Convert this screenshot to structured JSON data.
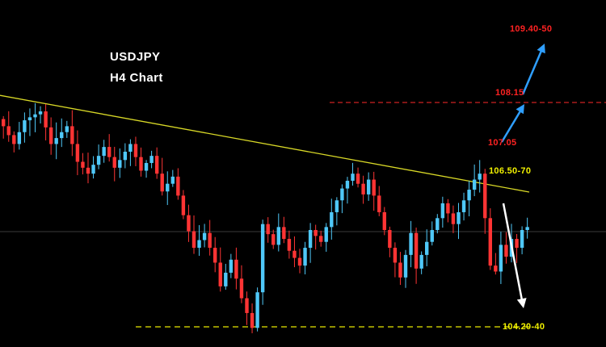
{
  "title": {
    "line1": "USDJPY",
    "line2": "H4 Chart"
  },
  "chart_data": {
    "type": "candlestick",
    "symbol": "USDJPY",
    "timeframe": "H4",
    "price_axis_visible": false,
    "approx_price_range": [
      104.2,
      108.4
    ],
    "closes": [
      107.75,
      107.6,
      107.45,
      107.65,
      107.85,
      107.9,
      107.95,
      108.0,
      107.73,
      107.45,
      107.55,
      107.65,
      107.75,
      107.45,
      107.15,
      107.05,
      106.95,
      107.1,
      107.25,
      107.4,
      107.23,
      107.05,
      107.18,
      107.32,
      107.45,
      107.23,
      107.0,
      107.13,
      107.25,
      106.95,
      106.65,
      106.78,
      106.9,
      106.58,
      106.25,
      105.98,
      105.7,
      105.83,
      105.95,
      105.7,
      105.45,
      105.05,
      105.28,
      105.5,
      105.18,
      104.85,
      104.6,
      104.35,
      104.95,
      106.1,
      105.93,
      105.75,
      106.05,
      105.85,
      105.65,
      105.53,
      105.4,
      105.7,
      106.0,
      105.9,
      105.8,
      106.05,
      106.3,
      106.5,
      106.7,
      106.83,
      106.95,
      106.78,
      106.6,
      106.85,
      106.58,
      106.3,
      106.0,
      105.7,
      105.45,
      105.2,
      105.58,
      105.95,
      105.35,
      105.58,
      105.8,
      106.0,
      106.2,
      106.45,
      106.28,
      106.1,
      106.3,
      106.5,
      106.68,
      106.85,
      106.95,
      106.2,
      105.4,
      105.3,
      105.75,
      105.55,
      105.85,
      105.7,
      106.0,
      106.05
    ],
    "colors": {
      "background": "#000000",
      "bull": "#4fc8f8",
      "bear": "#ff3434",
      "trendline": "#d9d927",
      "support_line": "#e8e800",
      "resistance_line": "#cc2222",
      "gridline": "#3a3a3a",
      "bull_arrow": "#2f9fff",
      "bear_arrow": "#ffffff",
      "label_red": "#ff2222",
      "label_yellow": "#f0f000",
      "title_white": "#ffffff"
    },
    "annotations": {
      "upper_target": {
        "label": "109.40-50",
        "price": 109.45
      },
      "resistance": {
        "label": "108.15",
        "price": 108.15
      },
      "pullback_level": {
        "label": "107.05",
        "price": 107.05
      },
      "trendline_zone": {
        "label": "106.50-70",
        "price_band": [
          106.5,
          106.7
        ]
      },
      "support_zone": {
        "label": "104.20-40",
        "price_band": [
          104.2,
          104.4
        ]
      }
    },
    "trendline": {
      "style": "descending",
      "start_price": 108.27,
      "end_price": 106.64
    },
    "scenario_arrows": [
      {
        "name": "up-1",
        "from_label": "107.05",
        "to_label": "108.15",
        "color_key": "bull_arrow"
      },
      {
        "name": "up-2",
        "from_label": "108.15",
        "to_label": "109.40-50",
        "color_key": "bull_arrow"
      },
      {
        "name": "down-1",
        "from_label": "106.50-70",
        "to_label": "104.20-40",
        "color_key": "bear_arrow"
      }
    ]
  }
}
